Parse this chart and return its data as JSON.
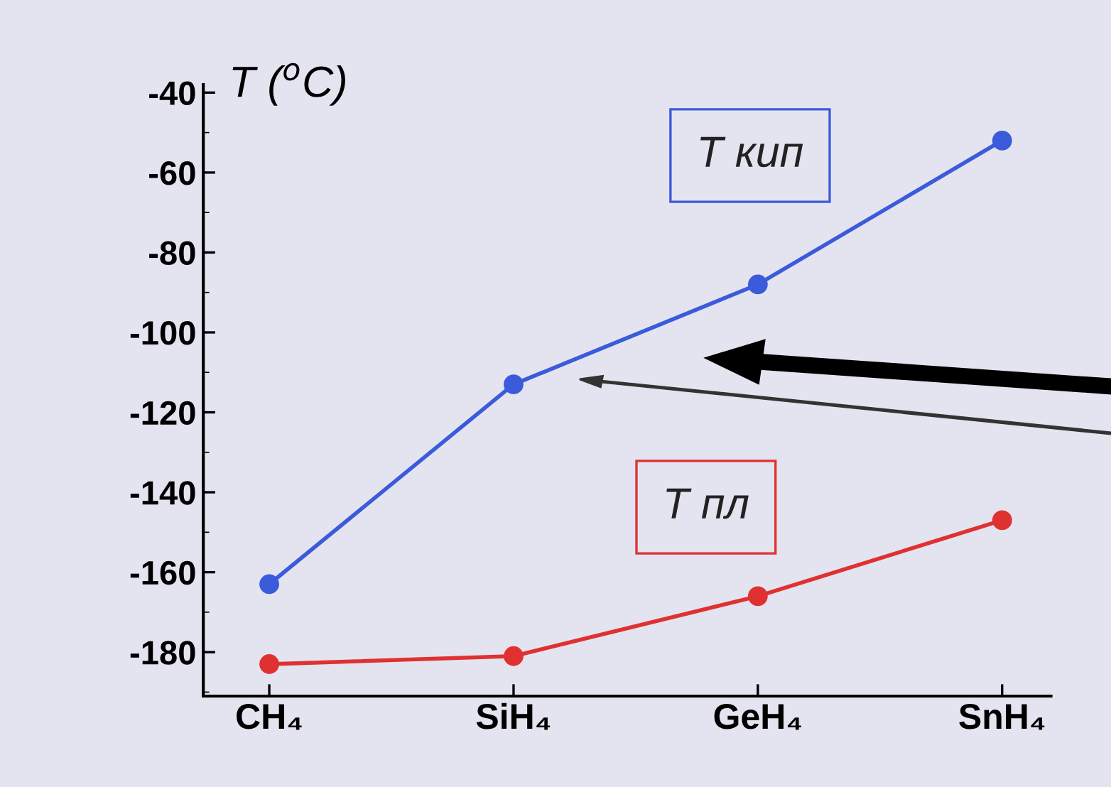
{
  "chart_data": {
    "type": "line",
    "ylabel": "T ($^{o}$C)",
    "categories": [
      "CH₄",
      "SiH₄",
      "GeH₄",
      "SnH₄"
    ],
    "series": [
      {
        "name": "T кип",
        "color": "#3b5bdb",
        "values": [
          -163,
          -113,
          -88,
          -52
        ]
      },
      {
        "name": "T пл",
        "color": "#e03131",
        "values": [
          -183,
          -181,
          -166,
          -147
        ]
      }
    ],
    "ylim": [
      -191,
      -38
    ],
    "yticks": [
      -180,
      -160,
      -140,
      -120,
      -100,
      -80,
      -60,
      -40
    ],
    "marker": "circle",
    "line_style": "solid",
    "grid": false,
    "legend": false
  }
}
